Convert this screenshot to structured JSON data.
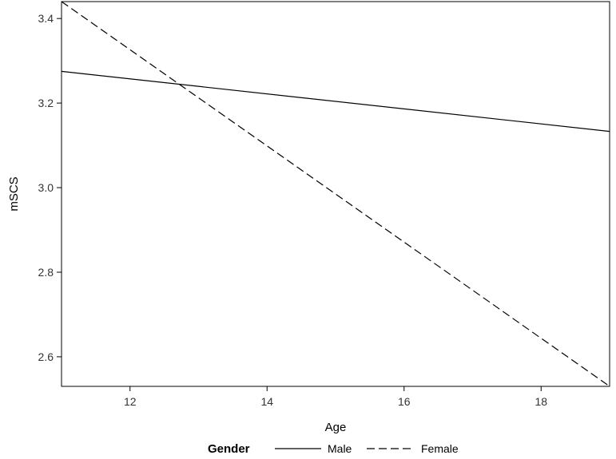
{
  "chart_data": {
    "type": "line",
    "title": "",
    "xlabel": "Age",
    "ylabel": "mSCS",
    "xlim": [
      11,
      19
    ],
    "ylim": [
      2.53,
      3.44
    ],
    "xticks": [
      12,
      14,
      16,
      18
    ],
    "yticks": [
      2.6,
      2.8,
      3.0,
      3.2,
      3.4
    ],
    "xtick_labels": [
      "12",
      "14",
      "16",
      "18"
    ],
    "ytick_labels": [
      "2.6",
      "2.8",
      "3.0",
      "3.2",
      "3.4"
    ],
    "grid": false,
    "legend": {
      "title": "Gender",
      "placement": "bottom"
    },
    "series": [
      {
        "name": "Male",
        "dash": "solid",
        "color": "#000000",
        "x": [
          11,
          19
        ],
        "y": [
          3.275,
          3.133
        ]
      },
      {
        "name": "Female",
        "dash": "dashed",
        "color": "#000000",
        "x": [
          11,
          19
        ],
        "y": [
          3.44,
          2.53
        ]
      }
    ]
  }
}
